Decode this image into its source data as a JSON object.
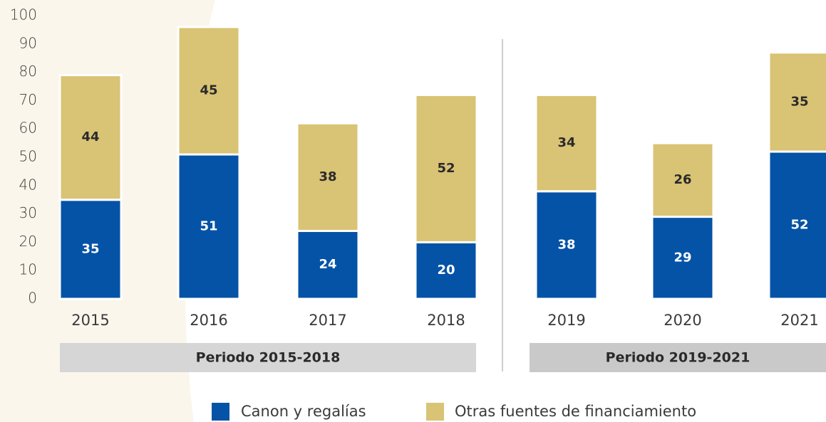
{
  "chart_data": {
    "type": "stacked_bar",
    "categories": [
      "2015",
      "2016",
      "2017",
      "2018",
      "2019",
      "2020",
      "2021"
    ],
    "series": [
      {
        "name": "Canon y regalías",
        "color": "#0553a6",
        "values": [
          35,
          51,
          24,
          20,
          38,
          29,
          52
        ]
      },
      {
        "name": "Otras fuentes de financiamiento",
        "color": "#d9c374",
        "values": [
          44,
          45,
          38,
          52,
          34,
          26,
          35
        ]
      }
    ],
    "periods": [
      "Periodo 2015-2018",
      "Periodo 2019-2021"
    ],
    "ylim": [
      0,
      100
    ],
    "yticks": [
      0,
      10,
      20,
      30,
      40,
      50,
      60,
      70,
      80,
      90,
      100
    ],
    "grid": false,
    "legend": "bottom"
  }
}
